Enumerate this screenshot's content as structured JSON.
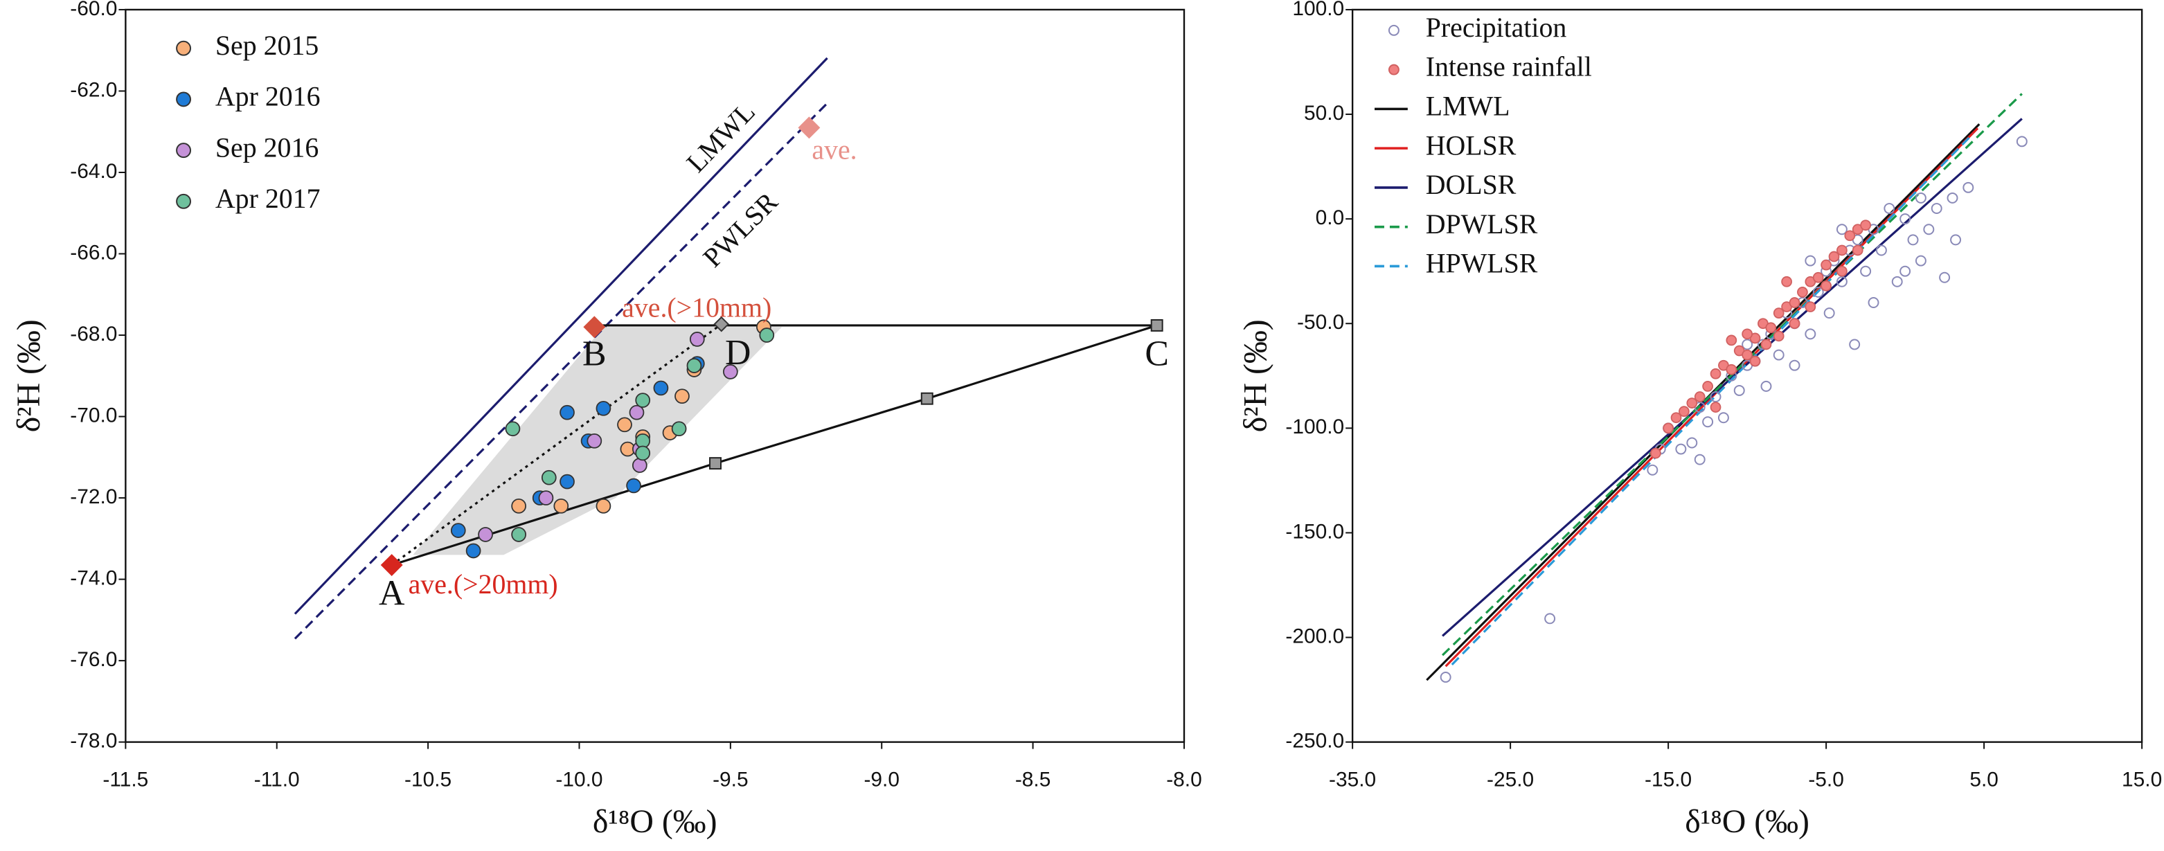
{
  "chart_data": [
    {
      "type": "scatter",
      "xlabel": "δ¹⁸O (‰)",
      "ylabel": "δ²H (‰)",
      "xlim": [
        -11.5,
        -8.0
      ],
      "ylim": [
        -78,
        -60
      ],
      "xticks": [
        {
          "value": -11.5,
          "label": "-11.5"
        },
        {
          "value": -11,
          "label": "-11.0"
        },
        {
          "value": -10.5,
          "label": "-10.5"
        },
        {
          "value": -10,
          "label": "-10.0"
        },
        {
          "value": -9.5,
          "label": "-9.5"
        },
        {
          "value": -9,
          "label": "-9.0"
        },
        {
          "value": -8.5,
          "label": "-8.5"
        },
        {
          "value": -8,
          "label": "-8.0"
        }
      ],
      "yticks": [
        {
          "value": -78,
          "label": "-78.0"
        },
        {
          "value": -76,
          "label": "-76.0"
        },
        {
          "value": -74,
          "label": "-74.0"
        },
        {
          "value": -72,
          "label": "-72.0"
        },
        {
          "value": -70,
          "label": "-70.0"
        },
        {
          "value": -68,
          "label": "-68.0"
        },
        {
          "value": -66,
          "label": "-66.0"
        },
        {
          "value": -64,
          "label": "-64.0"
        },
        {
          "value": -62,
          "label": "-62.0"
        },
        {
          "value": -60,
          "label": "-60.0"
        }
      ],
      "legend": "upper left",
      "line_names": "inline",
      "region": {
        "color": "#dcdcdc",
        "x": [
          -10.55,
          -9.92,
          -9.33,
          -9.88,
          -10.25
        ],
        "values": [
          -73.4,
          -67.8,
          -67.8,
          -72.0,
          -73.4
        ]
      },
      "lines": [
        {
          "name": "LMWL",
          "color": "#1c1c6e",
          "style": "solid",
          "x": [
            -10.94,
            -9.18
          ],
          "values": [
            -74.85,
            -61.19
          ]
        },
        {
          "name": "PWLSR",
          "color": "#1c1c6e",
          "style": "dashed",
          "x": [
            -10.94,
            -9.18
          ],
          "values": [
            -75.46,
            -62.3
          ]
        },
        {
          "color": "#111111",
          "style": "solid",
          "x": [
            -10.62,
            -9.55,
            -8.85,
            -8.09
          ],
          "values": [
            -73.65,
            -71.15,
            -69.56,
            -67.76
          ]
        },
        {
          "color": "#111111",
          "style": "solid",
          "x": [
            -9.95,
            -8.09
          ],
          "values": [
            -67.76,
            -67.76
          ]
        },
        {
          "color": "#111111",
          "style": "dotted",
          "x": [
            -10.62,
            -9.53
          ],
          "values": [
            -73.65,
            -67.73
          ]
        }
      ],
      "knots": {
        "color": "#9a9a9a",
        "x": [
          -9.55,
          -8.85,
          -8.09
        ],
        "values": [
          -71.15,
          -69.56,
          -67.76
        ]
      },
      "series": [
        {
          "name": "Sep 2015",
          "color": "#f8b07a",
          "marker": "circle",
          "x": [
            -9.39,
            -9.62,
            -9.66,
            -9.7,
            -9.84,
            -9.85,
            -9.79,
            -10.06,
            -9.92,
            -10.2
          ],
          "values": [
            -67.8,
            -68.85,
            -69.5,
            -70.4,
            -70.8,
            -70.2,
            -70.5,
            -72.2,
            -72.2,
            -72.2
          ]
        },
        {
          "name": "Apr 2016",
          "color": "#1f7bd6",
          "marker": "circle",
          "x": [
            -10.4,
            -10.35,
            -10.13,
            -10.04,
            -10.04,
            -9.92,
            -9.97,
            -9.82,
            -9.73,
            -9.61
          ],
          "values": [
            -72.8,
            -73.3,
            -72.0,
            -71.6,
            -69.9,
            -69.8,
            -70.6,
            -71.7,
            -69.3,
            -68.7
          ]
        },
        {
          "name": "Sep 2016",
          "color": "#c592d8",
          "marker": "circle",
          "x": [
            -10.31,
            -10.11,
            -9.81,
            -9.8,
            -9.8,
            -9.61,
            -9.5,
            -9.95
          ],
          "values": [
            -72.9,
            -72.0,
            -69.9,
            -70.8,
            -71.2,
            -68.1,
            -68.9,
            -70.6
          ]
        },
        {
          "name": "Apr 2017",
          "color": "#6fc09d",
          "marker": "circle",
          "x": [
            -10.22,
            -10.2,
            -10.1,
            -9.79,
            -9.79,
            -9.79,
            -9.67,
            -9.38,
            -9.62
          ],
          "values": [
            -70.3,
            -72.9,
            -71.5,
            -69.6,
            -70.6,
            -70.9,
            -70.3,
            -68.0,
            -68.75
          ]
        }
      ],
      "diamonds": [
        {
          "label": "ave.(>20mm)",
          "color": "#d7261e",
          "x": -10.62,
          "y": -73.65
        },
        {
          "label": "ave.(>10mm)",
          "color": "#d4503c",
          "x": -9.95,
          "y": -67.8
        },
        {
          "label": "ave.",
          "color": "#e8918a",
          "x": -9.24,
          "y": -62.9
        }
      ],
      "vertices": [
        {
          "label": "A",
          "x": -10.62,
          "y": -73.65
        },
        {
          "label": "B",
          "x": -9.95,
          "y": -67.76
        },
        {
          "label": "C",
          "x": -8.09,
          "y": -67.76
        },
        {
          "label": "D",
          "x": -9.53,
          "y": -67.73
        }
      ],
      "grey_diamond": {
        "color": "#9a9a9a",
        "x": -9.53,
        "y": -67.73
      }
    },
    {
      "type": "scatter",
      "xlabel": "δ¹⁸O (‰)",
      "ylabel": "δ²H (‰)",
      "xlim": [
        -35,
        15
      ],
      "ylim": [
        -250,
        100
      ],
      "xticks": [
        {
          "value": -35,
          "label": "-35.0"
        },
        {
          "value": -25,
          "label": "-25.0"
        },
        {
          "value": -15,
          "label": "-15.0"
        },
        {
          "value": -5,
          "label": "-5.0"
        },
        {
          "value": 5,
          "label": "5.0"
        },
        {
          "value": 15,
          "label": "15.0"
        }
      ],
      "yticks": [
        {
          "value": -250,
          "label": "-250.0"
        },
        {
          "value": -200,
          "label": "-200.0"
        },
        {
          "value": -150,
          "label": "-150.0"
        },
        {
          "value": -100,
          "label": "-100.0"
        },
        {
          "value": -50,
          "label": "-50.0"
        },
        {
          "value": 0,
          "label": "0.0"
        },
        {
          "value": 50,
          "label": "50.0"
        },
        {
          "value": 100,
          "label": "100.0"
        }
      ],
      "legend": "upper left",
      "line_names": "legend",
      "series": [
        {
          "name": "Precipitation",
          "color": "#8a8ab8",
          "marker": "open-circle",
          "x": [
            -29.1,
            -22.5,
            -16,
            -15.5,
            -15,
            -14.2,
            -13.5,
            -13,
            -12.5,
            -12,
            -11.5,
            -11,
            -10.5,
            -10,
            -9.5,
            -9,
            -8.8,
            -8.5,
            -8,
            -7.5,
            -7,
            -6.5,
            -6,
            -5.5,
            -5,
            -4.8,
            -4.5,
            -4,
            -3.5,
            -3.2,
            -3,
            -2.5,
            -2,
            -1.5,
            -1,
            -0.5,
            0,
            0.5,
            1,
            1.5,
            2,
            2.5,
            3,
            3.2,
            4,
            7.4,
            -6,
            -2,
            0,
            -10,
            -13,
            -7,
            -4,
            1
          ],
          "values": [
            -219,
            -191,
            -120,
            -110,
            -100,
            -110,
            -107,
            -90,
            -97,
            -85,
            -95,
            -75,
            -82,
            -70,
            -68,
            -60,
            -80,
            -55,
            -65,
            -45,
            -50,
            -40,
            -55,
            -35,
            -25,
            -45,
            -20,
            -30,
            -15,
            -60,
            -10,
            -25,
            -5,
            -15,
            5,
            -30,
            0,
            -10,
            10,
            -5,
            5,
            -28,
            10,
            -10,
            15,
            37,
            -20,
            -40,
            -25,
            -60,
            -115,
            -70,
            -5,
            -20
          ]
        },
        {
          "name": "Intense rainfall",
          "color": "#f08080",
          "marker": "circle",
          "x": [
            -15.8,
            -15,
            -14.5,
            -14,
            -13.5,
            -13,
            -12.5,
            -12,
            -11.5,
            -11,
            -10.5,
            -10,
            -9.5,
            -9.5,
            -9,
            -8.8,
            -8.5,
            -8,
            -8,
            -7.5,
            -7,
            -7,
            -6.5,
            -6,
            -6,
            -5.5,
            -5,
            -5,
            -4.5,
            -4,
            -4,
            -3.5,
            -3,
            -3,
            -2.5,
            -12,
            -10,
            -7.5,
            -11
          ],
          "values": [
            -112,
            -100,
            -95,
            -92,
            -88,
            -85,
            -80,
            -74,
            -70,
            -72,
            -63,
            -65,
            -57,
            -68,
            -50,
            -60,
            -52,
            -45,
            -56,
            -42,
            -40,
            -50,
            -35,
            -30,
            -42,
            -28,
            -22,
            -32,
            -18,
            -15,
            -25,
            -8,
            -5,
            -15,
            -3,
            -90,
            -55,
            -30,
            -58
          ]
        }
      ],
      "lines": [
        {
          "name": "LMWL",
          "color": "#111111",
          "style": "solid",
          "x": [
            -30.3,
            4.7
          ],
          "values": [
            -220.4,
            45.3
          ]
        },
        {
          "name": "HOLSR",
          "color": "#e02020",
          "style": "solid",
          "x": [
            -29.1,
            4.6
          ],
          "values": [
            -213.8,
            43.3
          ]
        },
        {
          "name": "DOLSR",
          "color": "#1c1c6e",
          "style": "solid",
          "x": [
            -29.3,
            7.4
          ],
          "values": [
            -199.3,
            47.9
          ]
        },
        {
          "name": "DPWLSR",
          "color": "#1a9a4a",
          "style": "dashed",
          "x": [
            -29.3,
            7.4
          ],
          "values": [
            -208.5,
            59.8
          ]
        },
        {
          "name": "HPWLSR",
          "color": "#2a9ad8",
          "style": "dashed",
          "x": [
            -28.7,
            4.3
          ],
          "values": [
            -213,
            40.7
          ]
        }
      ]
    }
  ]
}
